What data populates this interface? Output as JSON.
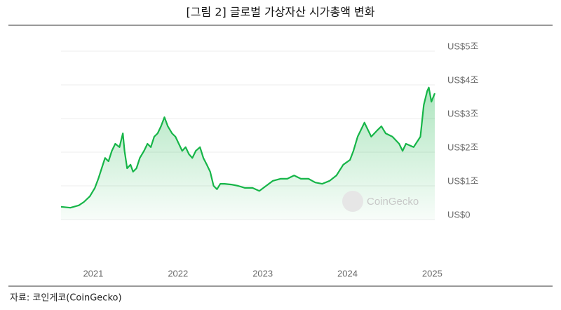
{
  "chart_data": {
    "type": "area",
    "title": "[그림 2] 글로벌 가상자산 시가총액 변화",
    "watermark": "CoinGecko",
    "source": "자료: 코인게코(CoinGecko)",
    "color": "#16b548",
    "grid": true,
    "xlim": [
      2020.62,
      2025.03
    ],
    "xticks": [
      2021,
      2022,
      2023,
      2024,
      2025
    ],
    "ylim": [
      0,
      5
    ],
    "yticks": [
      {
        "value": 0,
        "label": "US$0"
      },
      {
        "value": 1,
        "label": "US$1조"
      },
      {
        "value": 2,
        "label": "US$2조"
      },
      {
        "value": 3,
        "label": "US$3조"
      },
      {
        "value": 4,
        "label": "US$4조"
      },
      {
        "value": 5,
        "label": "US$5조"
      }
    ],
    "x": [
      2020.62,
      2020.73,
      2020.83,
      2020.89,
      2020.96,
      2021.02,
      2021.06,
      2021.1,
      2021.14,
      2021.18,
      2021.22,
      2021.26,
      2021.31,
      2021.35,
      2021.37,
      2021.4,
      2021.44,
      2021.47,
      2021.51,
      2021.55,
      2021.6,
      2021.64,
      2021.68,
      2021.72,
      2021.76,
      2021.8,
      2021.84,
      2021.88,
      2021.93,
      2021.97,
      2022.01,
      2022.05,
      2022.09,
      2022.13,
      2022.17,
      2022.21,
      2022.26,
      2022.3,
      2022.34,
      2022.38,
      2022.42,
      2022.46,
      2022.5,
      2022.55,
      2022.63,
      2022.71,
      2022.79,
      2022.88,
      2022.96,
      2023.04,
      2023.12,
      2023.21,
      2023.29,
      2023.37,
      2023.45,
      2023.54,
      2023.62,
      2023.7,
      2023.79,
      2023.87,
      2023.95,
      2024.03,
      2024.07,
      2024.12,
      2024.16,
      2024.2,
      2024.24,
      2024.28,
      2024.36,
      2024.4,
      2024.45,
      2024.53,
      2024.61,
      2024.65,
      2024.69,
      2024.78,
      2024.86,
      2024.9,
      2024.94,
      2024.96,
      2024.99,
      2025.03
    ],
    "values": [
      0.38,
      0.35,
      0.42,
      0.52,
      0.69,
      0.94,
      1.21,
      1.52,
      1.83,
      1.73,
      2.04,
      2.25,
      2.15,
      2.56,
      2.04,
      1.52,
      1.63,
      1.42,
      1.52,
      1.83,
      2.04,
      2.25,
      2.15,
      2.46,
      2.56,
      2.77,
      3.04,
      2.77,
      2.56,
      2.46,
      2.25,
      2.04,
      2.15,
      1.94,
      1.83,
      2.04,
      2.15,
      1.83,
      1.63,
      1.42,
      1.0,
      0.9,
      1.06,
      1.06,
      1.04,
      1.0,
      0.94,
      0.94,
      0.85,
      1.0,
      1.15,
      1.21,
      1.21,
      1.31,
      1.21,
      1.21,
      1.1,
      1.06,
      1.15,
      1.31,
      1.63,
      1.77,
      2.04,
      2.46,
      2.67,
      2.88,
      2.67,
      2.46,
      2.67,
      2.77,
      2.56,
      2.46,
      2.25,
      2.04,
      2.25,
      2.15,
      2.46,
      3.4,
      3.81,
      3.92,
      3.5,
      3.75
    ]
  }
}
